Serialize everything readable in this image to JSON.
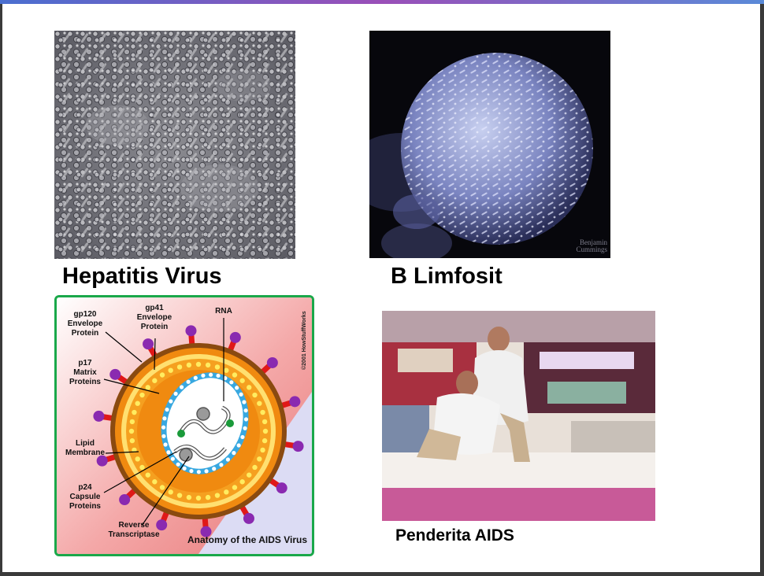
{
  "captions": {
    "hepatitis": "Hepatitis Virus",
    "b_lymphocyte": "B Limfosit",
    "aids_sufferer": "Penderita AIDS"
  },
  "photo_credits": {
    "b_lymphocyte_line1": "Benjamin",
    "b_lymphocyte_line2": "Cummings"
  },
  "diagram": {
    "title": "Anatomy of the AIDS Virus",
    "copyright": "©2001 HowStuffWorks",
    "labels": {
      "gp120_1": "gp120",
      "gp120_2": "Envelope",
      "gp120_3": "Protein",
      "gp41_1": "gp41",
      "gp41_2": "Envelope",
      "gp41_3": "Protein",
      "rna": "RNA",
      "p17_1": "p17",
      "p17_2": "Matrix",
      "p17_3": "Proteins",
      "lipid_1": "Lipid",
      "lipid_2": "Membrane",
      "p24_1": "p24",
      "p24_2": "Capsule",
      "p24_3": "Proteins",
      "rt_1": "Reverse",
      "rt_2": "Transcriptase"
    }
  },
  "colors": {
    "slide_bg": "#ffffff",
    "frame": "#3a3a3a",
    "diagram_border": "#1aa84a",
    "virus_outer": "#f08a10",
    "virus_membrane": "#8a4a10",
    "spike_purple": "#8a2ab0",
    "spike_red": "#e01818",
    "capsid_blue": "#38a8e0",
    "rna_green": "#1a9a3a"
  }
}
